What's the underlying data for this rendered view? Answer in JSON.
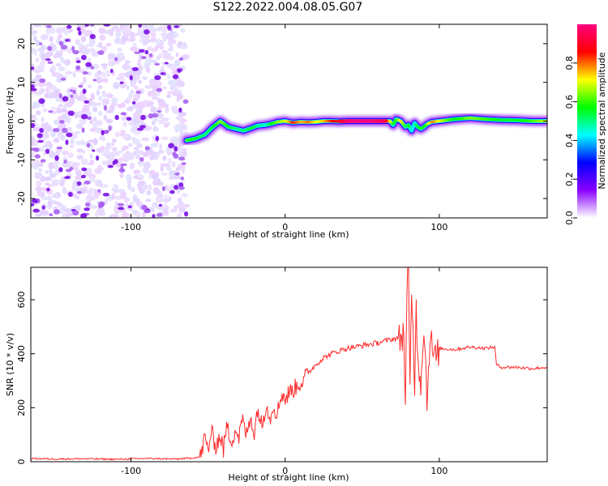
{
  "title": "S122.2022.004.08.05.G07",
  "chart_data": [
    {
      "type": "heatmap",
      "title": "S122.2022.004.08.05.G07",
      "xlabel": "Height of straight line (km)",
      "ylabel": "Frequency (Hz)",
      "xlim": [
        -165,
        170
      ],
      "ylim": [
        -25,
        25
      ],
      "xticks": [
        -100,
        0,
        100
      ],
      "xtick_labels": [
        "-100",
        "0",
        "100"
      ],
      "yticks": [
        -20,
        -10,
        0,
        10,
        20
      ],
      "ytick_labels": [
        "-20",
        "-10",
        "0",
        "10",
        "20"
      ],
      "noise_region_x": [
        -165,
        -64
      ],
      "signal_track": {
        "x": [
          -64,
          -58,
          -52,
          -47,
          -42,
          -37,
          -32,
          -27,
          -22,
          -18,
          -13,
          -10,
          -5,
          0,
          5,
          10,
          15,
          20,
          25,
          30,
          35,
          40,
          45,
          50,
          55,
          60,
          65,
          68,
          70,
          72,
          75,
          78,
          80,
          82,
          84,
          86,
          88,
          90,
          92,
          95,
          100,
          110,
          120,
          130,
          140,
          150,
          160,
          170
        ],
        "y": [
          -5.0,
          -4.5,
          -3.5,
          -1.5,
          0.0,
          -1.5,
          -2.0,
          -2.5,
          -1.8,
          -1.2,
          -1.0,
          -0.8,
          -0.2,
          0.0,
          -0.4,
          -0.2,
          -0.3,
          -0.2,
          0.0,
          0.0,
          -0.1,
          0.0,
          0.0,
          0.0,
          0.0,
          0.0,
          0.0,
          0.0,
          -1.0,
          0.5,
          0.0,
          -1.5,
          -1.0,
          -2.5,
          -0.5,
          -1.5,
          -2.0,
          -1.5,
          -0.8,
          -0.2,
          0.0,
          0.5,
          0.8,
          0.5,
          0.3,
          0.2,
          0.0,
          0.0
        ],
        "amplitude": [
          0.6,
          0.55,
          0.5,
          0.55,
          0.65,
          0.55,
          0.5,
          0.5,
          0.55,
          0.5,
          0.45,
          0.55,
          0.65,
          0.7,
          0.85,
          0.75,
          0.8,
          0.7,
          0.75,
          0.85,
          0.9,
          0.97,
          1.0,
          1.0,
          1.0,
          0.97,
          0.95,
          0.7,
          0.55,
          0.6,
          0.75,
          0.5,
          0.55,
          0.4,
          0.5,
          0.55,
          0.6,
          0.55,
          0.65,
          0.8,
          0.7,
          0.55,
          0.65,
          0.6,
          0.55,
          0.55,
          0.6,
          0.7
        ]
      },
      "colorbar": {
        "label": "Normalized spectral amplitude",
        "range": [
          0.0,
          1.0
        ],
        "ticks": [
          0.0,
          0.2,
          0.4,
          0.6,
          0.8
        ],
        "tick_labels": [
          "0.0",
          "0.2",
          "0.4",
          "0.6",
          "0.8"
        ],
        "colors": [
          "#ffffff",
          "#8a00ff",
          "#0000ff",
          "#00ffff",
          "#00ff00",
          "#ffff00",
          "#ff0000",
          "#ff0080"
        ]
      }
    },
    {
      "type": "line",
      "xlabel": "Height of straight line (km)",
      "ylabel": "SNR (10 * v/v)",
      "xlim": [
        -165,
        170
      ],
      "ylim": [
        0,
        720
      ],
      "xticks": [
        -100,
        0,
        100
      ],
      "xtick_labels": [
        "-100",
        "0",
        "100"
      ],
      "yticks": [
        0,
        200,
        400,
        600
      ],
      "ytick_labels": [
        "0",
        "200",
        "400",
        "600"
      ],
      "line_color": "#ff2a2a",
      "series": [
        {
          "name": "SNR",
          "x": [
            -165,
            -150,
            -130,
            -110,
            -90,
            -70,
            -60,
            -55,
            -52,
            -50,
            -48,
            -45,
            -42,
            -40,
            -38,
            -35,
            -32,
            -30,
            -28,
            -25,
            -22,
            -20,
            -18,
            -15,
            -12,
            -10,
            -8,
            -5,
            -2,
            0,
            3,
            6,
            9,
            12,
            15,
            20,
            25,
            30,
            40,
            50,
            60,
            70,
            75,
            77,
            78,
            79,
            80,
            81,
            82,
            84,
            85,
            86,
            88,
            90,
            92,
            94,
            96,
            98,
            100,
            110,
            120,
            130,
            136,
            137,
            140,
            150,
            160,
            170
          ],
          "y": [
            12,
            10,
            11,
            9,
            12,
            10,
            14,
            18,
            90,
            40,
            110,
            60,
            95,
            45,
            130,
            80,
            120,
            90,
            155,
            100,
            170,
            95,
            200,
            130,
            230,
            150,
            210,
            180,
            260,
            230,
            260,
            270,
            290,
            300,
            330,
            360,
            385,
            400,
            420,
            430,
            440,
            455,
            460,
            480,
            210,
            600,
            720,
            250,
            650,
            300,
            560,
            420,
            280,
            520,
            230,
            470,
            400,
            380,
            420,
            415,
            425,
            420,
            425,
            360,
            350,
            350,
            345,
            350
          ]
        }
      ]
    }
  ]
}
